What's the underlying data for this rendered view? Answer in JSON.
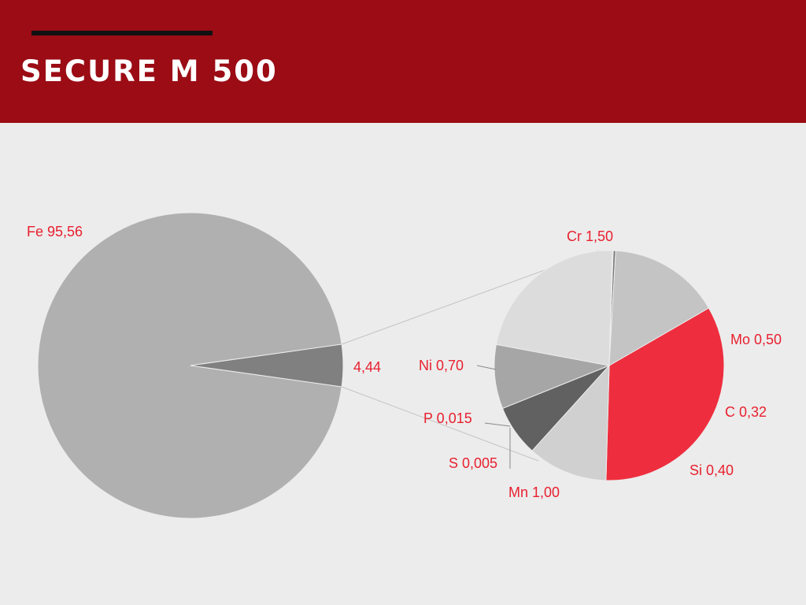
{
  "header": {
    "title": "SECURE M 500"
  },
  "colors": {
    "header_bg": "#9b0c15",
    "background": "#ececec",
    "label": "#e8202f"
  },
  "chart_data": {
    "type": "pie",
    "subtype": "pie-of-pie",
    "main_pie": {
      "slices": [
        {
          "name": "Fe",
          "value": 95.56,
          "label": "Fe 95,56",
          "color": "#b0b0b0"
        },
        {
          "name": "Other",
          "value": 4.44,
          "label": "4,44",
          "color": "#808080"
        }
      ]
    },
    "secondary_pie": {
      "slices": [
        {
          "name": "Cr",
          "value": 1.5,
          "label": "Cr 1,50",
          "color": "#ee2e3e"
        },
        {
          "name": "Mo",
          "value": 0.5,
          "label": "Mo 0,50",
          "color": "#d0d0d0"
        },
        {
          "name": "C",
          "value": 0.32,
          "label": "C 0,32",
          "color": "#616161"
        },
        {
          "name": "Si",
          "value": 0.4,
          "label": "Si 0,40",
          "color": "#a6a6a6"
        },
        {
          "name": "Mn",
          "value": 1.0,
          "label": "Mn 1,00",
          "color": "#dcdcdc"
        },
        {
          "name": "S",
          "value": 0.005,
          "label": "S 0,005",
          "color": "#e8202f"
        },
        {
          "name": "P",
          "value": 0.015,
          "label": "P 0,015",
          "color": "#7a7a7a"
        },
        {
          "name": "Ni",
          "value": 0.7,
          "label": "Ni 0,70",
          "color": "#c4c4c4"
        }
      ]
    }
  }
}
